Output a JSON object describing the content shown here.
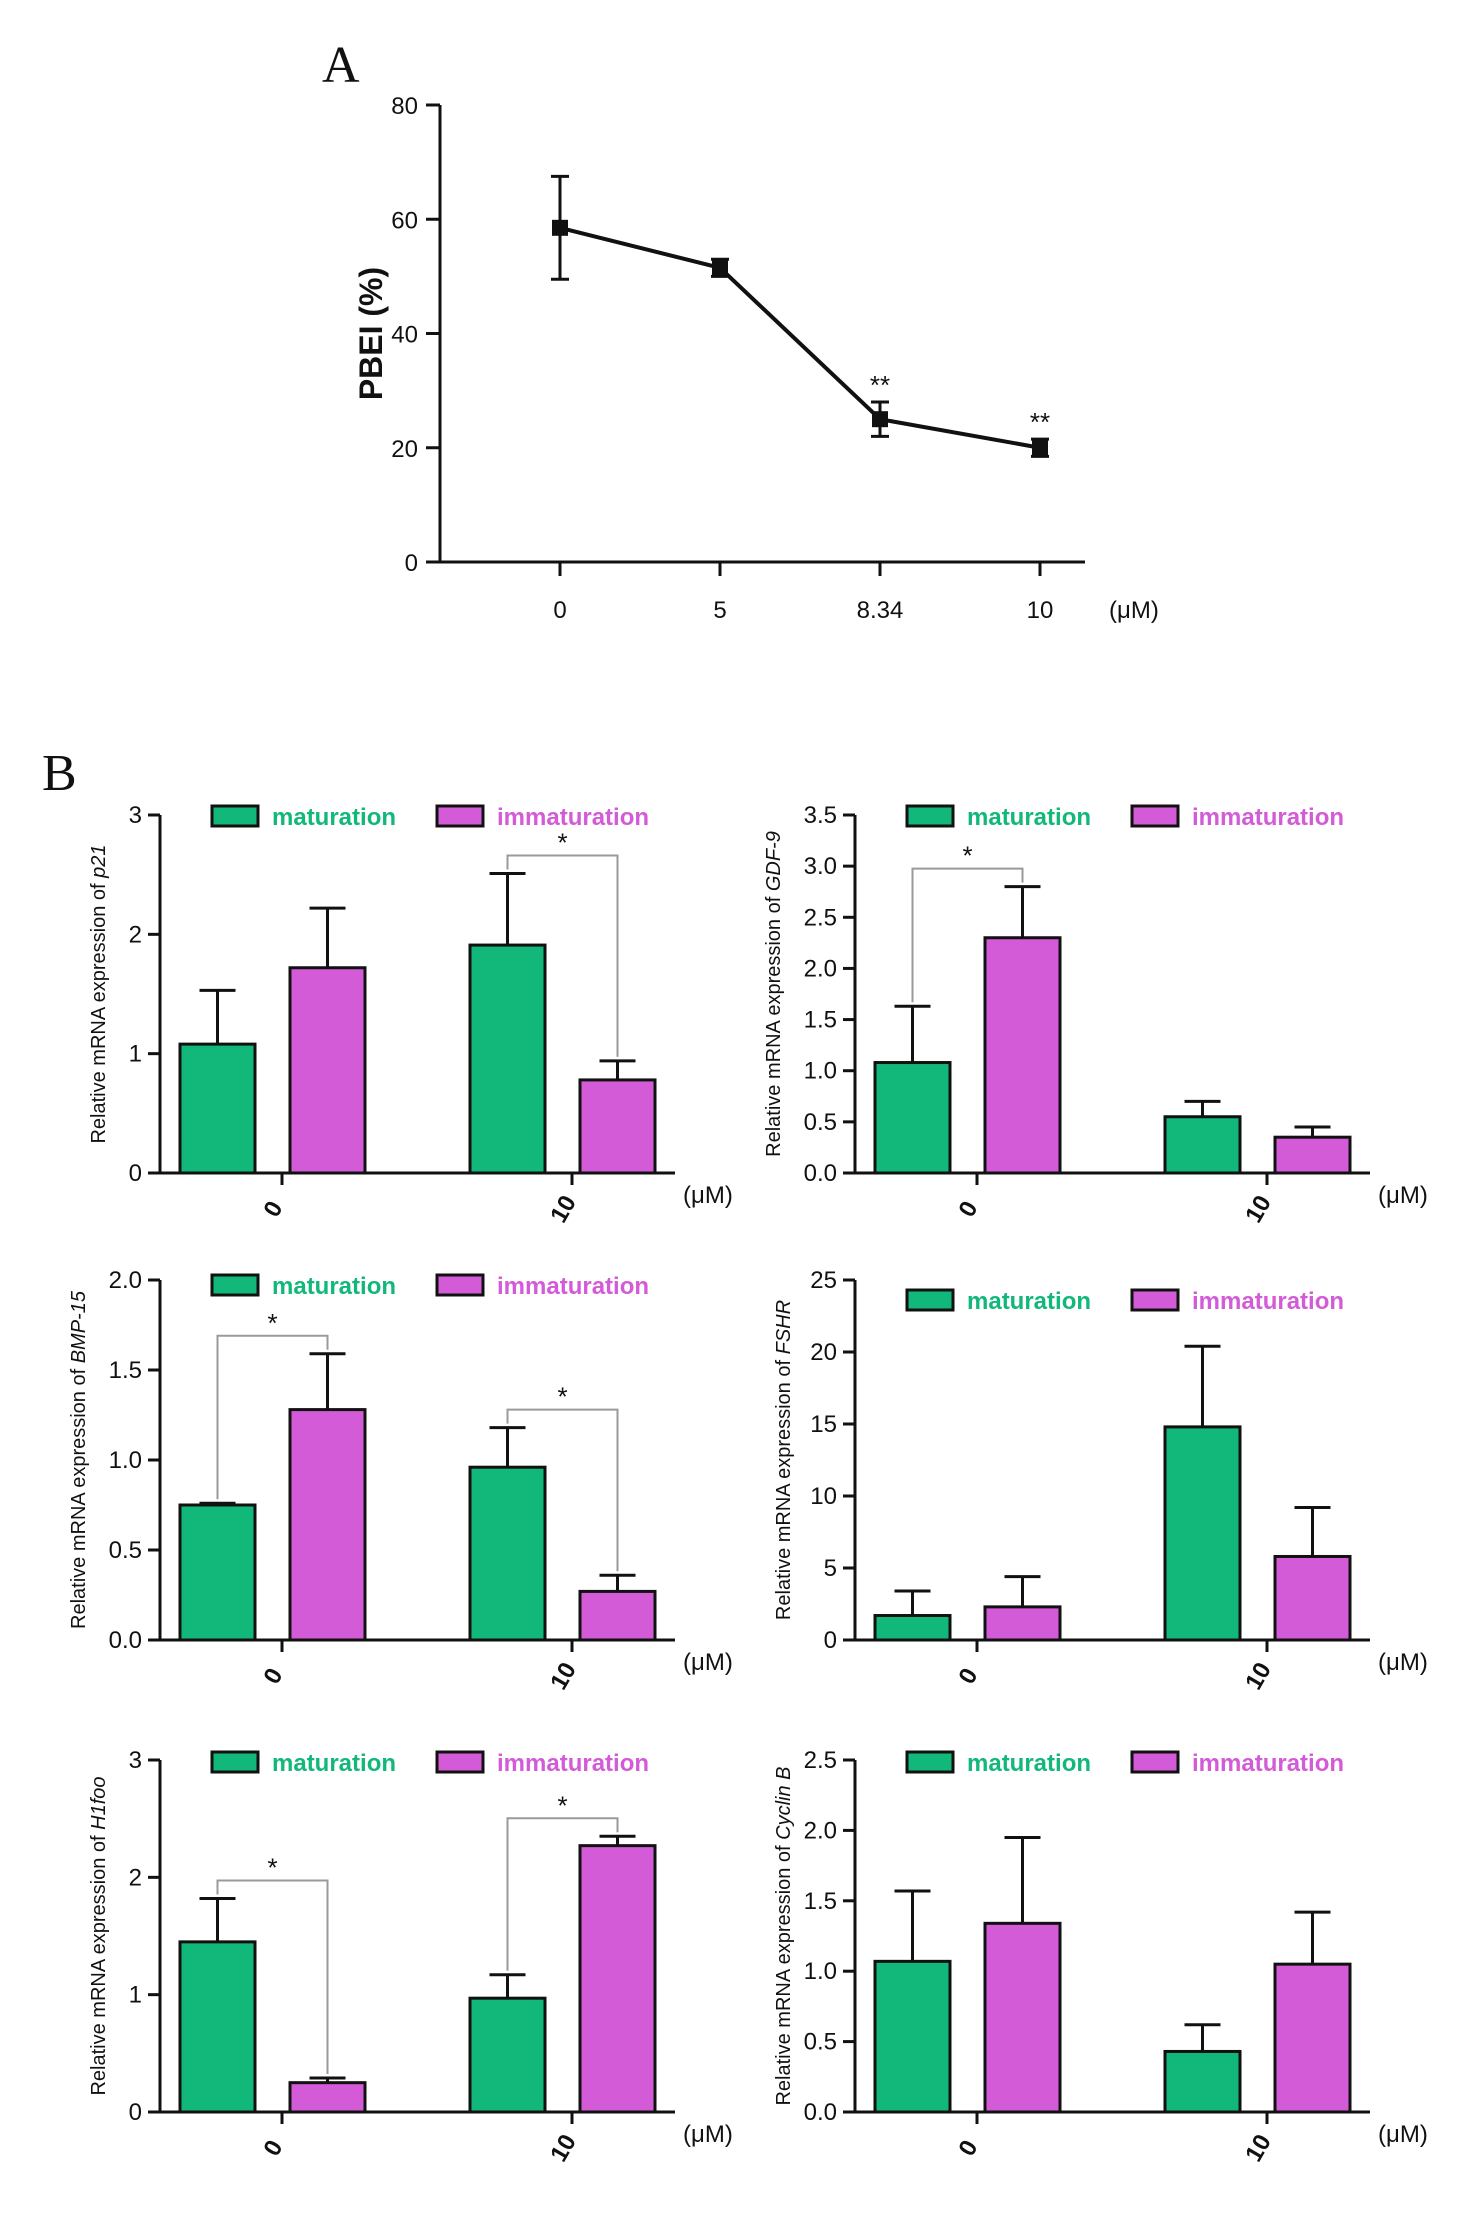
{
  "figure": {
    "panel_a_letter": "A",
    "panel_b_letter": "B"
  },
  "colors": {
    "maturation": "#12b87a",
    "immaturation": "#d45bd8"
  },
  "chart_data": [
    {
      "id": "a",
      "type": "line",
      "title": "",
      "ylabel": "PBEI (%)",
      "xlabel": "",
      "unit": "(μM)",
      "categories": [
        "0",
        "5",
        "8.34",
        "10"
      ],
      "values": [
        58.5,
        51.5,
        25,
        20
      ],
      "errors": [
        9,
        1.5,
        3,
        1.5
      ],
      "significance": [
        "",
        "",
        "**",
        "**"
      ],
      "ylim": [
        0,
        80
      ],
      "yticks": [
        0,
        20,
        40,
        60,
        80
      ],
      "grid": false
    },
    {
      "id": "p21",
      "type": "bar",
      "gene": "p21",
      "ylabel_prefix": "Relative mRNA expression of ",
      "unit": "(μM)",
      "categories": [
        "0",
        "10"
      ],
      "legend": [
        "maturation",
        "immaturation"
      ],
      "series": [
        {
          "name": "maturation",
          "values": [
            1.08,
            1.91
          ],
          "errors": [
            0.45,
            0.6
          ]
        },
        {
          "name": "immaturation",
          "values": [
            1.72,
            0.78
          ],
          "errors": [
            0.5,
            0.16
          ]
        }
      ],
      "ylim": [
        0,
        3
      ],
      "yticks": [
        "0",
        "1",
        "2",
        "3"
      ],
      "significance": [
        {
          "label": "*",
          "from": [
            1,
            0
          ],
          "to": [
            1,
            1
          ]
        }
      ]
    },
    {
      "id": "gdf9",
      "type": "bar",
      "gene": "GDF-9",
      "ylabel_prefix": "Relative mRNA expression of ",
      "unit": "(μM)",
      "categories": [
        "0",
        "10"
      ],
      "legend": [
        "maturation",
        "immaturation"
      ],
      "series": [
        {
          "name": "maturation",
          "values": [
            1.08,
            0.55
          ],
          "errors": [
            0.55,
            0.15
          ]
        },
        {
          "name": "immaturation",
          "values": [
            2.3,
            0.35
          ],
          "errors": [
            0.5,
            0.1
          ]
        }
      ],
      "ylim": [
        0,
        3.5
      ],
      "yticks": [
        "0.0",
        "0.5",
        "1.0",
        "1.5",
        "2.0",
        "2.5",
        "3.0",
        "3.5"
      ],
      "significance": [
        {
          "label": "*",
          "from": [
            0,
            0
          ],
          "to": [
            0,
            1
          ]
        }
      ]
    },
    {
      "id": "bmp15",
      "type": "bar",
      "gene": "BMP-15",
      "ylabel_prefix": "Relative mRNA expression of ",
      "unit": "(μM)",
      "categories": [
        "0",
        "10"
      ],
      "legend": [
        "maturation",
        "immaturation"
      ],
      "series": [
        {
          "name": "maturation",
          "values": [
            0.75,
            0.96
          ],
          "errors": [
            0.01,
            0.22
          ]
        },
        {
          "name": "immaturation",
          "values": [
            1.28,
            0.27
          ],
          "errors": [
            0.31,
            0.09
          ]
        }
      ],
      "ylim": [
        0,
        2.0
      ],
      "yticks": [
        "0.0",
        "0.5",
        "1.0",
        "1.5",
        "2.0"
      ],
      "significance": [
        {
          "label": "*",
          "from": [
            0,
            0
          ],
          "to": [
            0,
            1
          ]
        },
        {
          "label": "*",
          "from": [
            1,
            0
          ],
          "to": [
            1,
            1
          ]
        }
      ]
    },
    {
      "id": "fshr",
      "type": "bar",
      "gene": "FSHR",
      "ylabel_prefix": "Relative mRNA expression of ",
      "unit": "(μM)",
      "categories": [
        "0",
        "10"
      ],
      "legend": [
        "maturation",
        "immaturation"
      ],
      "series": [
        {
          "name": "maturation",
          "values": [
            1.7,
            14.8
          ],
          "errors": [
            1.7,
            5.6
          ]
        },
        {
          "name": "immaturation",
          "values": [
            2.3,
            5.8
          ],
          "errors": [
            2.1,
            3.4
          ]
        }
      ],
      "ylim": [
        0,
        25
      ],
      "yticks": [
        "0",
        "5",
        "10",
        "15",
        "20",
        "25"
      ],
      "significance": []
    },
    {
      "id": "h1foo",
      "type": "bar",
      "gene": "H1foo",
      "ylabel_prefix": "Relative mRNA expression of ",
      "unit": "(μM)",
      "categories": [
        "0",
        "10"
      ],
      "legend": [
        "maturation",
        "immaturation"
      ],
      "series": [
        {
          "name": "maturation",
          "values": [
            1.45,
            0.97
          ],
          "errors": [
            0.37,
            0.2
          ]
        },
        {
          "name": "immaturation",
          "values": [
            0.25,
            2.27
          ],
          "errors": [
            0.04,
            0.08
          ]
        }
      ],
      "ylim": [
        0,
        3
      ],
      "yticks": [
        "0",
        "1",
        "2",
        "3"
      ],
      "significance": [
        {
          "label": "*",
          "from": [
            0,
            0
          ],
          "to": [
            0,
            1
          ]
        },
        {
          "label": "*",
          "from": [
            1,
            0
          ],
          "to": [
            1,
            1
          ]
        }
      ]
    },
    {
      "id": "cyclinb",
      "type": "bar",
      "gene": "Cyclin B",
      "ylabel_prefix": "Relative mRNA expression of ",
      "unit": "(μM)",
      "categories": [
        "0",
        "10"
      ],
      "legend": [
        "maturation",
        "immaturation"
      ],
      "series": [
        {
          "name": "maturation",
          "values": [
            1.07,
            0.43
          ],
          "errors": [
            0.5,
            0.19
          ]
        },
        {
          "name": "immaturation",
          "values": [
            1.34,
            1.05
          ],
          "errors": [
            0.61,
            0.37
          ]
        }
      ],
      "ylim": [
        0,
        2.5
      ],
      "yticks": [
        "0.0",
        "0.5",
        "1.0",
        "1.5",
        "2.0",
        "2.5"
      ],
      "significance": []
    }
  ]
}
